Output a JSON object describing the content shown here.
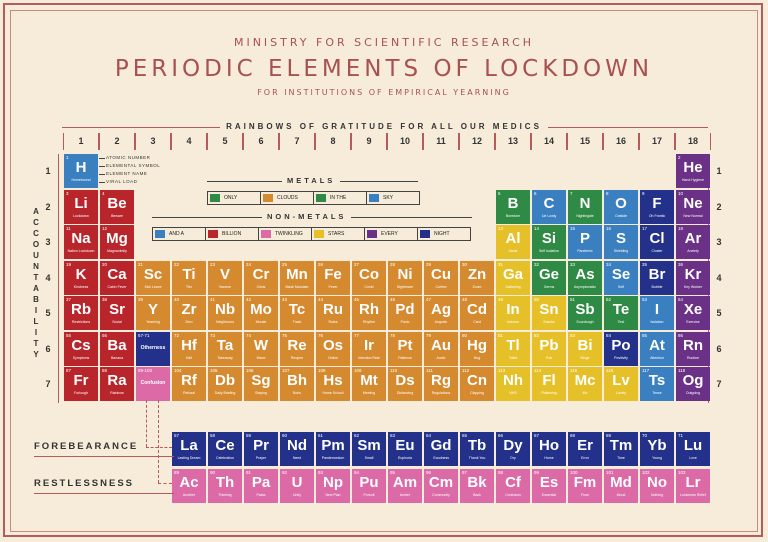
{
  "colors": {
    "red": "#b8262c",
    "orange": "#d58a2f",
    "yellow": "#e6c028",
    "green": "#2f8a45",
    "blue": "#3a7fc0",
    "navy": "#24318b",
    "purple": "#6a3187",
    "pink": "#dc6aa7"
  },
  "header": {
    "ministry": "MINISTRY FOR SCIENTIFIC RESEARCH",
    "title": "PERIODIC ELEMENTS OF LOCKDOWN",
    "subtitle": "FOR INSTITUTIONS OF EMPIRICAL YEARNING",
    "rainbow": "RAINBOWS OF GRATITUDE FOR ALL OUR MEDICS"
  },
  "groups": [
    "1",
    "2",
    "3",
    "4",
    "5",
    "6",
    "7",
    "8",
    "9",
    "10",
    "11",
    "12",
    "13",
    "14",
    "15",
    "16",
    "17",
    "18"
  ],
  "periods": [
    "1",
    "2",
    "3",
    "4",
    "5",
    "6",
    "7"
  ],
  "accountability": [
    "A",
    "C",
    "C",
    "O",
    "U",
    "N",
    "T",
    "A",
    "B",
    "I",
    "L",
    "I",
    "T",
    "Y"
  ],
  "key": {
    "atomic_number": "ATOMIC NUMBER",
    "elemental_symbol": "ELEMENTAL SYMBOL",
    "element_name": "ELEMENT NAME",
    "viral_load": "VIRAL LOAD"
  },
  "legend": {
    "metals_title": "METALS",
    "nonmetals_title": "NON-METALS",
    "metals": [
      {
        "label": "ONLY",
        "color": "green"
      },
      {
        "label": "CLOUDS",
        "color": "orange"
      },
      {
        "label": "IN THE",
        "color": "green"
      },
      {
        "label": "SKY",
        "color": "blue"
      }
    ],
    "nonmetals": [
      {
        "label": "AND A",
        "color": "blue"
      },
      {
        "label": "BILLION",
        "color": "red"
      },
      {
        "label": "TWINKLING",
        "color": "pink"
      },
      {
        "label": "STARS",
        "color": "yellow"
      },
      {
        "label": "EVERY",
        "color": "purple"
      },
      {
        "label": "NIGHT",
        "color": "navy"
      }
    ]
  },
  "series_labels": {
    "forebearance": "FOREBEARANCE",
    "restlessness": "RESTLESSNESS"
  },
  "elements": [
    {
      "n": "1",
      "s": "H",
      "nm": "Homebound",
      "c": "blue",
      "p": 1,
      "g": 1
    },
    {
      "n": "2",
      "s": "He",
      "nm": "Hand Hygiene",
      "c": "purple",
      "p": 1,
      "g": 18
    },
    {
      "n": "3",
      "s": "Li",
      "nm": "Lockdown",
      "c": "red",
      "p": 2,
      "g": 1
    },
    {
      "n": "4",
      "s": "Be",
      "nm": "Beware",
      "c": "red",
      "p": 2,
      "g": 2
    },
    {
      "n": "5",
      "s": "B",
      "nm": "Boredom",
      "c": "green",
      "p": 2,
      "g": 13
    },
    {
      "n": "6",
      "s": "C",
      "nm": "Lie Lowly",
      "c": "blue",
      "p": 2,
      "g": 14
    },
    {
      "n": "7",
      "s": "N",
      "nm": "Nightingale",
      "c": "green",
      "p": 2,
      "g": 15
    },
    {
      "n": "8",
      "s": "O",
      "nm": "Outside",
      "c": "blue",
      "p": 2,
      "g": 16
    },
    {
      "n": "9",
      "s": "F",
      "nm": "Oh Frantic",
      "c": "navy",
      "p": 2,
      "g": 17
    },
    {
      "n": "10",
      "s": "Ne",
      "nm": "New Normal",
      "c": "purple",
      "p": 2,
      "g": 18
    },
    {
      "n": "11",
      "s": "Na",
      "nm": "Nation Lockdown",
      "c": "red",
      "p": 3,
      "g": 1
    },
    {
      "n": "12",
      "s": "Mg",
      "nm": "Magnanimity",
      "c": "red",
      "p": 3,
      "g": 2
    },
    {
      "n": "13",
      "s": "Al",
      "nm": "Alone",
      "c": "yellow",
      "p": 3,
      "g": 13
    },
    {
      "n": "14",
      "s": "Si",
      "nm": "Self Isolation",
      "c": "green",
      "p": 3,
      "g": 14
    },
    {
      "n": "15",
      "s": "P",
      "nm": "Pandemic",
      "c": "blue",
      "p": 3,
      "g": 15
    },
    {
      "n": "16",
      "s": "S",
      "nm": "Shielding",
      "c": "blue",
      "p": 3,
      "g": 16
    },
    {
      "n": "17",
      "s": "Cl",
      "nm": "Cluster",
      "c": "navy",
      "p": 3,
      "g": 17
    },
    {
      "n": "18",
      "s": "Ar",
      "nm": "Anxiety",
      "c": "purple",
      "p": 3,
      "g": 18
    },
    {
      "n": "19",
      "s": "K",
      "nm": "Kindness",
      "c": "red",
      "p": 4,
      "g": 1
    },
    {
      "n": "20",
      "s": "Ca",
      "nm": "Cabin Fever",
      "c": "red",
      "p": 4,
      "g": 2
    },
    {
      "n": "21",
      "s": "Sc",
      "nm": "Sick Leave",
      "c": "orange",
      "p": 4,
      "g": 3
    },
    {
      "n": "22",
      "s": "Ti",
      "nm": "Tier",
      "c": "orange",
      "p": 4,
      "g": 4
    },
    {
      "n": "23",
      "s": "V",
      "nm": "Vaccine",
      "c": "orange",
      "p": 4,
      "g": 5
    },
    {
      "n": "24",
      "s": "Cr",
      "nm": "Crisis",
      "c": "orange",
      "p": 4,
      "g": 6
    },
    {
      "n": "25",
      "s": "Mn",
      "nm": "Mask Mandate",
      "c": "orange",
      "p": 4,
      "g": 7
    },
    {
      "n": "26",
      "s": "Fe",
      "nm": "Fever",
      "c": "orange",
      "p": 4,
      "g": 8
    },
    {
      "n": "27",
      "s": "Co",
      "nm": "Covid",
      "c": "orange",
      "p": 4,
      "g": 9
    },
    {
      "n": "28",
      "s": "Ni",
      "nm": "Nightmare",
      "c": "orange",
      "p": 4,
      "g": 10
    },
    {
      "n": "29",
      "s": "Cu",
      "nm": "Curfew",
      "c": "orange",
      "p": 4,
      "g": 11
    },
    {
      "n": "30",
      "s": "Zn",
      "nm": "Zoom",
      "c": "orange",
      "p": 4,
      "g": 12
    },
    {
      "n": "31",
      "s": "Ga",
      "nm": "Gathering",
      "c": "yellow",
      "p": 4,
      "g": 13
    },
    {
      "n": "32",
      "s": "Ge",
      "nm": "Germs",
      "c": "green",
      "p": 4,
      "g": 14
    },
    {
      "n": "33",
      "s": "As",
      "nm": "Asymptomatic",
      "c": "green",
      "p": 4,
      "g": 15
    },
    {
      "n": "34",
      "s": "Se",
      "nm": "Self",
      "c": "blue",
      "p": 4,
      "g": 16
    },
    {
      "n": "35",
      "s": "Br",
      "nm": "Bubble",
      "c": "navy",
      "p": 4,
      "g": 17
    },
    {
      "n": "36",
      "s": "Kr",
      "nm": "Key Worker",
      "c": "purple",
      "p": 4,
      "g": 18
    },
    {
      "n": "37",
      "s": "Rb",
      "nm": "Restrictions",
      "c": "red",
      "p": 5,
      "g": 1
    },
    {
      "n": "38",
      "s": "Sr",
      "nm": "Social",
      "c": "red",
      "p": 5,
      "g": 2
    },
    {
      "n": "39",
      "s": "Y",
      "nm": "Yearning",
      "c": "orange",
      "p": 5,
      "g": 3
    },
    {
      "n": "40",
      "s": "Zr",
      "nm": "Zero",
      "c": "orange",
      "p": 5,
      "g": 4
    },
    {
      "n": "41",
      "s": "Nb",
      "nm": "Neighbours",
      "c": "orange",
      "p": 5,
      "g": 5
    },
    {
      "n": "42",
      "s": "Mo",
      "nm": "Morale",
      "c": "orange",
      "p": 5,
      "g": 6
    },
    {
      "n": "43",
      "s": "Tc",
      "nm": "Track",
      "c": "orange",
      "p": 5,
      "g": 7
    },
    {
      "n": "44",
      "s": "Ru",
      "nm": "Rules",
      "c": "orange",
      "p": 5,
      "g": 8
    },
    {
      "n": "45",
      "s": "Rh",
      "nm": "Rhythm",
      "c": "orange",
      "p": 5,
      "g": 9
    },
    {
      "n": "46",
      "s": "Pd",
      "nm": "Panic",
      "c": "orange",
      "p": 5,
      "g": 10
    },
    {
      "n": "47",
      "s": "Ag",
      "nm": "Anguish",
      "c": "orange",
      "p": 5,
      "g": 11
    },
    {
      "n": "48",
      "s": "Cd",
      "nm": "Card",
      "c": "orange",
      "p": 5,
      "g": 12
    },
    {
      "n": "49",
      "s": "In",
      "nm": "Indoors",
      "c": "yellow",
      "p": 5,
      "g": 13
    },
    {
      "n": "50",
      "s": "Sn",
      "nm": "Snacks",
      "c": "yellow",
      "p": 5,
      "g": 14
    },
    {
      "n": "51",
      "s": "Sb",
      "nm": "Sourdough",
      "c": "green",
      "p": 5,
      "g": 15
    },
    {
      "n": "52",
      "s": "Te",
      "nm": "Test",
      "c": "green",
      "p": 5,
      "g": 16
    },
    {
      "n": "53",
      "s": "I",
      "nm": "Isolation",
      "c": "blue",
      "p": 5,
      "g": 17
    },
    {
      "n": "54",
      "s": "Xe",
      "nm": "Exercise",
      "c": "purple",
      "p": 5,
      "g": 18
    },
    {
      "n": "55",
      "s": "Cs",
      "nm": "Symptoms",
      "c": "red",
      "p": 6,
      "g": 1
    },
    {
      "n": "56",
      "s": "Ba",
      "nm": "Banana",
      "c": "red",
      "p": 6,
      "g": 2
    },
    {
      "n": "57-71",
      "s": "Otherness",
      "nm": "",
      "c": "navy",
      "p": 6,
      "g": 3,
      "ph": true
    },
    {
      "n": "72",
      "s": "Hf",
      "nm": "Half",
      "c": "orange",
      "p": 6,
      "g": 4
    },
    {
      "n": "73",
      "s": "Ta",
      "nm": "Takeaway",
      "c": "orange",
      "p": 6,
      "g": 5
    },
    {
      "n": "74",
      "s": "W",
      "nm": "Wave",
      "c": "orange",
      "p": 6,
      "g": 6
    },
    {
      "n": "75",
      "s": "Re",
      "nm": "Reopen",
      "c": "orange",
      "p": 6,
      "g": 7
    },
    {
      "n": "76",
      "s": "Os",
      "nm": "Online",
      "c": "orange",
      "p": 6,
      "g": 8
    },
    {
      "n": "77",
      "s": "Ir",
      "nm": "Infection Rate",
      "c": "orange",
      "p": 6,
      "g": 9
    },
    {
      "n": "78",
      "s": "Pt",
      "nm": "Patience",
      "c": "orange",
      "p": 6,
      "g": 10
    },
    {
      "n": "79",
      "s": "Au",
      "nm": "Audio",
      "c": "orange",
      "p": 6,
      "g": 11
    },
    {
      "n": "80",
      "s": "Hg",
      "nm": "Hug",
      "c": "orange",
      "p": 6,
      "g": 12
    },
    {
      "n": "81",
      "s": "Tl",
      "nm": "Toilet",
      "c": "yellow",
      "p": 6,
      "g": 13
    },
    {
      "n": "82",
      "s": "Pb",
      "nm": "Pub",
      "c": "yellow",
      "p": 6,
      "g": 14
    },
    {
      "n": "83",
      "s": "Bi",
      "nm": "Binge",
      "c": "yellow",
      "p": 6,
      "g": 15
    },
    {
      "n": "84",
      "s": "Po",
      "nm": "Positivity",
      "c": "navy",
      "p": 6,
      "g": 16
    },
    {
      "n": "85",
      "s": "At",
      "nm": "Attention",
      "c": "blue",
      "p": 6,
      "g": 17
    },
    {
      "n": "86",
      "s": "Rn",
      "nm": "Routine",
      "c": "purple",
      "p": 6,
      "g": 18
    },
    {
      "n": "87",
      "s": "Fr",
      "nm": "Furlough",
      "c": "red",
      "p": 7,
      "g": 1
    },
    {
      "n": "88",
      "s": "Ra",
      "nm": "Rainbow",
      "c": "red",
      "p": 7,
      "g": 2
    },
    {
      "n": "89-103",
      "s": "Confusion",
      "nm": "",
      "c": "pink",
      "p": 7,
      "g": 3,
      "ph": true
    },
    {
      "n": "104",
      "s": "Rf",
      "nm": "Refusal",
      "c": "orange",
      "p": 7,
      "g": 4
    },
    {
      "n": "105",
      "s": "Db",
      "nm": "Daily Briefing",
      "c": "orange",
      "p": 7,
      "g": 5
    },
    {
      "n": "106",
      "s": "Sg",
      "nm": "Staying",
      "c": "orange",
      "p": 7,
      "g": 6
    },
    {
      "n": "107",
      "s": "Bh",
      "nm": "Boris",
      "c": "orange",
      "p": 7,
      "g": 7
    },
    {
      "n": "108",
      "s": "Hs",
      "nm": "Home School",
      "c": "orange",
      "p": 7,
      "g": 8
    },
    {
      "n": "109",
      "s": "Mt",
      "nm": "Meeting",
      "c": "orange",
      "p": 7,
      "g": 9
    },
    {
      "n": "110",
      "s": "Ds",
      "nm": "Distancing",
      "c": "orange",
      "p": 7,
      "g": 10
    },
    {
      "n": "111",
      "s": "Rg",
      "nm": "Regulations",
      "c": "orange",
      "p": 7,
      "g": 11
    },
    {
      "n": "112",
      "s": "Cn",
      "nm": "Clapping",
      "c": "orange",
      "p": 7,
      "g": 12
    },
    {
      "n": "113",
      "s": "Nh",
      "nm": "NHS",
      "c": "yellow",
      "p": 7,
      "g": 13
    },
    {
      "n": "114",
      "s": "Fl",
      "nm": "Flattening",
      "c": "yellow",
      "p": 7,
      "g": 14
    },
    {
      "n": "115",
      "s": "Mc",
      "nm": "Mc",
      "c": "yellow",
      "p": 7,
      "g": 15
    },
    {
      "n": "116",
      "s": "Lv",
      "nm": "Lovely",
      "c": "yellow",
      "p": 7,
      "g": 16
    },
    {
      "n": "117",
      "s": "Ts",
      "nm": "Tense",
      "c": "blue",
      "p": 7,
      "g": 17
    },
    {
      "n": "118",
      "s": "Og",
      "nm": "Outgoing",
      "c": "purple",
      "p": 7,
      "g": 18
    },
    {
      "n": "57",
      "s": "La",
      "nm": "Lasting Dream",
      "c": "navy",
      "p": 9,
      "g": 4
    },
    {
      "n": "58",
      "s": "Ce",
      "nm": "Celebration",
      "c": "navy",
      "p": 9,
      "g": 5
    },
    {
      "n": "59",
      "s": "Pr",
      "nm": "Prayer",
      "c": "navy",
      "p": 9,
      "g": 6
    },
    {
      "n": "60",
      "s": "Nd",
      "nm": "Need",
      "c": "navy",
      "p": 9,
      "g": 7
    },
    {
      "n": "61",
      "s": "Pm",
      "nm": "Pandemonium",
      "c": "navy",
      "p": 9,
      "g": 8
    },
    {
      "n": "62",
      "s": "Sm",
      "nm": "Small",
      "c": "navy",
      "p": 9,
      "g": 9
    },
    {
      "n": "63",
      "s": "Eu",
      "nm": "Euphoria",
      "c": "navy",
      "p": 9,
      "g": 10
    },
    {
      "n": "64",
      "s": "Gd",
      "nm": "Goodness",
      "c": "navy",
      "p": 9,
      "g": 11
    },
    {
      "n": "65",
      "s": "Tb",
      "nm": "Thank You",
      "c": "navy",
      "p": 9,
      "g": 12
    },
    {
      "n": "66",
      "s": "Dy",
      "nm": "Dry",
      "c": "navy",
      "p": 9,
      "g": 13
    },
    {
      "n": "67",
      "s": "Ho",
      "nm": "Home",
      "c": "navy",
      "p": 9,
      "g": 14
    },
    {
      "n": "68",
      "s": "Er",
      "nm": "Error",
      "c": "navy",
      "p": 9,
      "g": 15
    },
    {
      "n": "69",
      "s": "Tm",
      "nm": "Time",
      "c": "navy",
      "p": 9,
      "g": 16
    },
    {
      "n": "70",
      "s": "Yb",
      "nm": "Young",
      "c": "navy",
      "p": 9,
      "g": 17
    },
    {
      "n": "71",
      "s": "Lu",
      "nm": "Love",
      "c": "navy",
      "p": 9,
      "g": 18
    },
    {
      "n": "89",
      "s": "Ac",
      "nm": "Another",
      "c": "pink",
      "p": 10,
      "g": 4
    },
    {
      "n": "90",
      "s": "Th",
      "nm": "Thinking",
      "c": "pink",
      "p": 10,
      "g": 5
    },
    {
      "n": "91",
      "s": "Pa",
      "nm": "Pasta",
      "c": "pink",
      "p": 10,
      "g": 6
    },
    {
      "n": "92",
      "s": "U",
      "nm": "Unity",
      "c": "pink",
      "p": 10,
      "g": 7
    },
    {
      "n": "93",
      "s": "Np",
      "nm": "New Plan",
      "c": "pink",
      "p": 10,
      "g": 8
    },
    {
      "n": "94",
      "s": "Pu",
      "nm": "Pursuit",
      "c": "pink",
      "p": 10,
      "g": 9
    },
    {
      "n": "95",
      "s": "Am",
      "nm": "Amber",
      "c": "pink",
      "p": 10,
      "g": 10
    },
    {
      "n": "96",
      "s": "Cm",
      "nm": "Community",
      "c": "pink",
      "p": 10,
      "g": 11
    },
    {
      "n": "97",
      "s": "Bk",
      "nm": "Back",
      "c": "pink",
      "p": 10,
      "g": 12
    },
    {
      "n": "98",
      "s": "Cf",
      "nm": "Confusion",
      "c": "pink",
      "p": 10,
      "g": 13
    },
    {
      "n": "99",
      "s": "Es",
      "nm": "Essential",
      "c": "pink",
      "p": 10,
      "g": 14
    },
    {
      "n": "100",
      "s": "Fm",
      "nm": "From",
      "c": "pink",
      "p": 10,
      "g": 15
    },
    {
      "n": "101",
      "s": "Md",
      "nm": "Mood",
      "c": "pink",
      "p": 10,
      "g": 16
    },
    {
      "n": "102",
      "s": "No",
      "nm": "Nothing",
      "c": "pink",
      "p": 10,
      "g": 17
    },
    {
      "n": "103",
      "s": "Lr",
      "nm": "Lockdown Relief",
      "c": "pink",
      "p": 10,
      "g": 18
    }
  ]
}
